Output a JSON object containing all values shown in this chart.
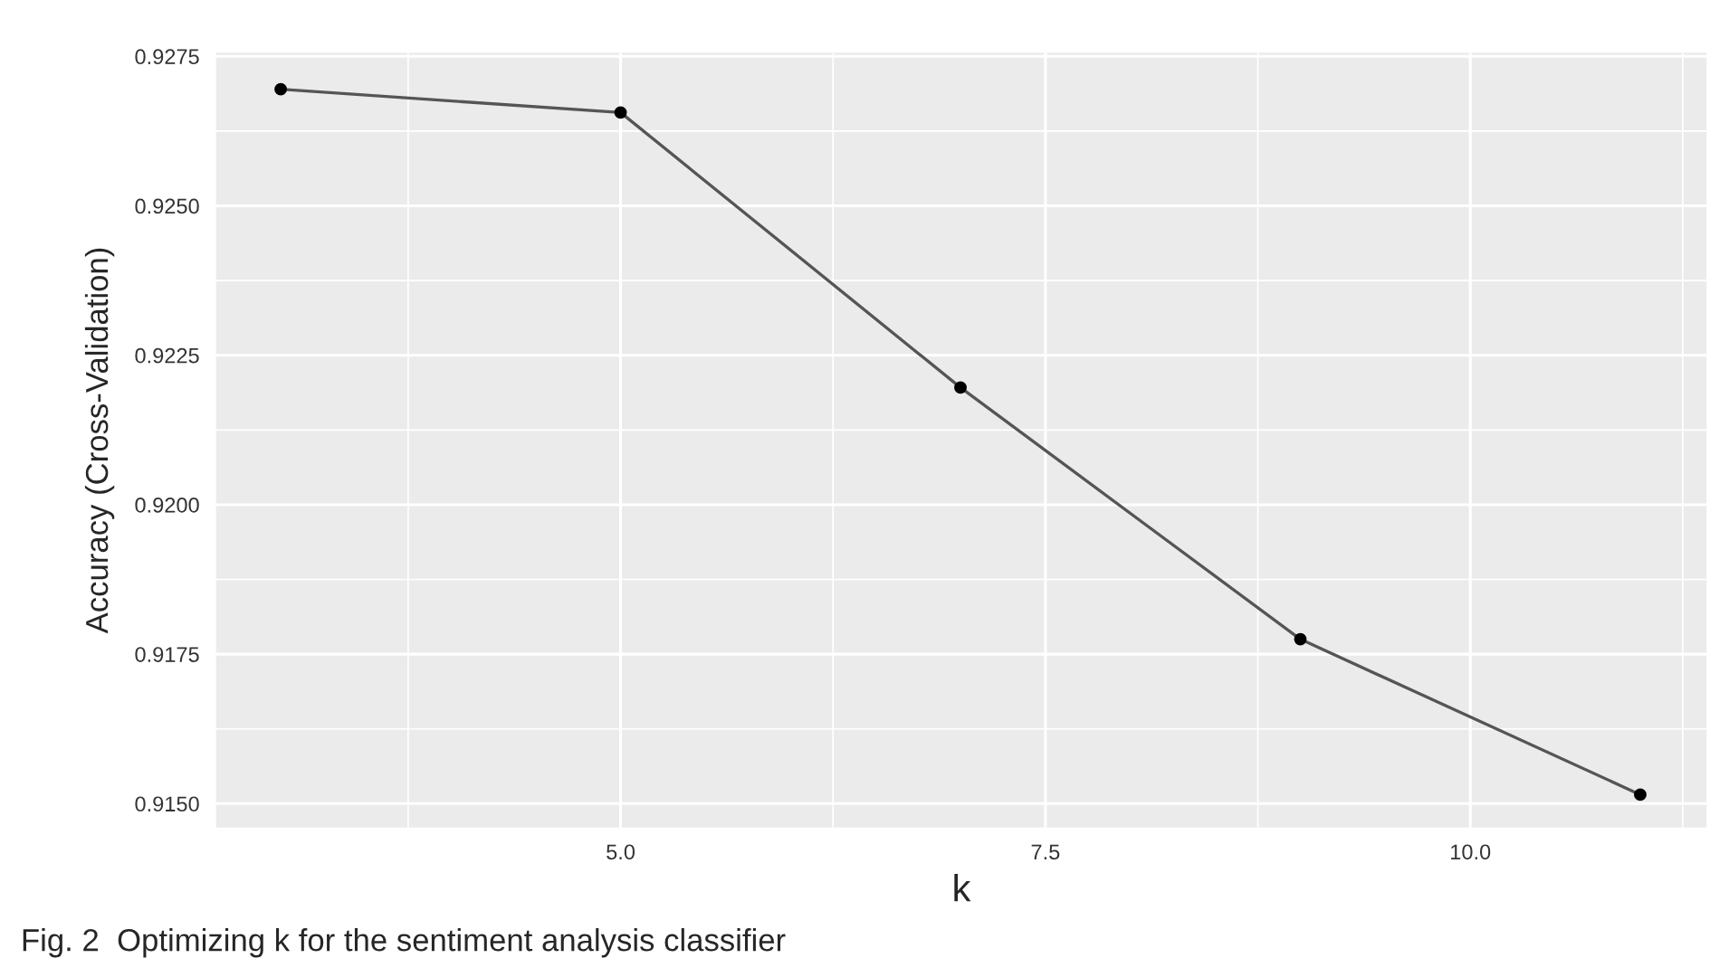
{
  "chart_data": {
    "type": "line",
    "xlabel": "k",
    "ylabel": "Accuracy (Cross-Validation)",
    "annotations": [
      "Fig. 2  Optimizing k for the sentiment analysis classifier"
    ],
    "x": [
      3,
      5,
      7,
      9,
      11
    ],
    "series": [
      {
        "color": "#555555",
        "values": [
          0.92695,
          0.92656,
          0.92196,
          0.91775,
          0.91515
        ]
      }
    ],
    "xlim": [
      2.62,
      11.39
    ],
    "xticks": [
      {
        "value": 5,
        "label": "5.0"
      },
      7.5,
      {
        "value": 10,
        "label": "10.0"
      }
    ],
    "ylim": [
      0.9146,
      0.92756
    ],
    "yticks": [
      {
        "value": 0.915,
        "label": "0.9150"
      },
      0.9175,
      {
        "value": 0.92,
        "label": "0.9200"
      },
      0.9225,
      {
        "value": 0.925,
        "label": "0.9250"
      },
      0.9275
    ],
    "grid": true,
    "marker": "circle",
    "line_style": "solid"
  }
}
